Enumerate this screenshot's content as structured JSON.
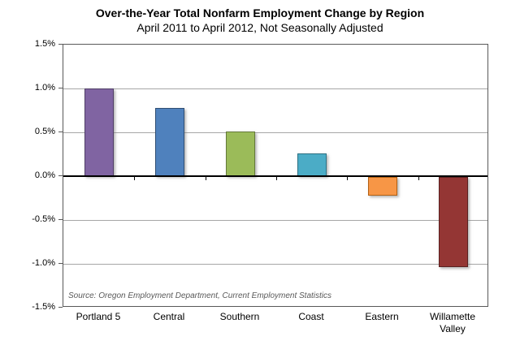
{
  "title": "Over-the-Year Total Nonfarm Employment Change by Region",
  "subtitle": "April 2011 to April 2012, Not Seasonally Adjusted",
  "source_note": "Source: Oregon Employment Department, Current Employment Statistics",
  "chart_data": {
    "type": "bar",
    "title": "Over-the-Year Total Nonfarm Employment Change by Region",
    "subtitle": "April 2011 to April 2012, Not Seasonally Adjusted",
    "categories": [
      "Portland 5",
      "Central",
      "Southern",
      "Coast",
      "Eastern",
      "Willamette Valley"
    ],
    "values": [
      1.0,
      0.78,
      0.51,
      0.26,
      -0.21,
      -1.03
    ],
    "value_unit": "percent",
    "bar_colors": [
      "#8064A2",
      "#4F81BD",
      "#9BBB59",
      "#4BACC6",
      "#F79646",
      "#943634"
    ],
    "bar_border_colors": [
      "#4F3E66",
      "#2F4E73",
      "#64793A",
      "#2E7183",
      "#B26012",
      "#5A2120"
    ],
    "ylim": [
      -1.5,
      1.5
    ],
    "ytick_step": 0.5,
    "ytick_labels": [
      "1.5%",
      "1.0%",
      "0.5%",
      "0.0%",
      "-0.5%",
      "-1.0%",
      "-1.5%"
    ],
    "xlabel": "",
    "ylabel": "",
    "grid": true,
    "gridline_color": "#a6a6a6",
    "zero_line_color": "#000000",
    "legend": "none",
    "annotations": [
      "Source: Oregon Employment Department, Current Employment Statistics"
    ]
  }
}
